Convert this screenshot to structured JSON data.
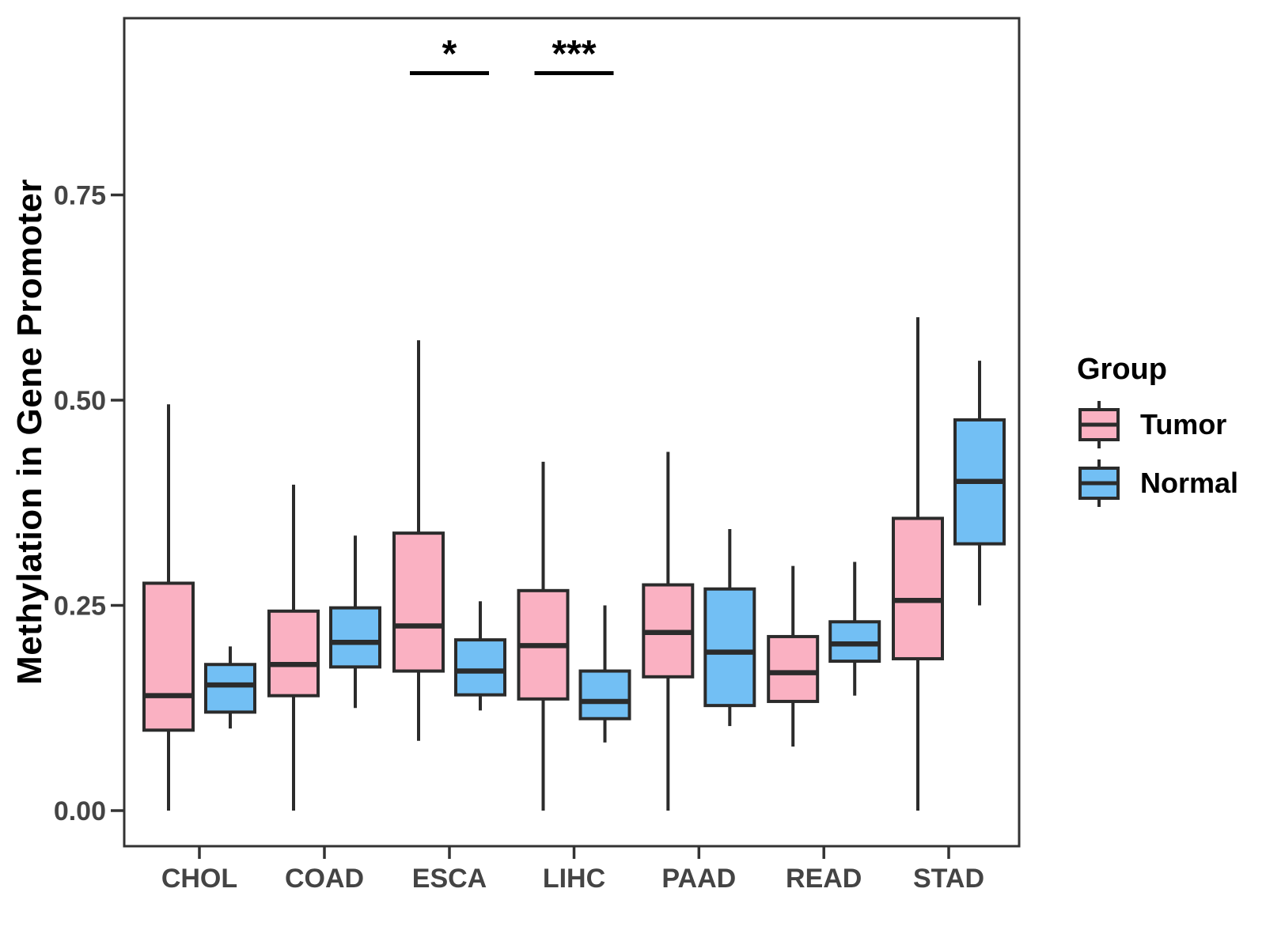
{
  "figure": {
    "background": "#FFFFFF"
  },
  "chart_data": {
    "type": "grouped_boxplot",
    "title": "",
    "xlabel": "",
    "ylabel": "Methylation in Gene Promoter",
    "categories": [
      "CHOL",
      "COAD",
      "ESCA",
      "LIHC",
      "PAAD",
      "READ",
      "STAD"
    ],
    "yticks": [
      0.0,
      0.25,
      0.5,
      0.75
    ],
    "ytick_labels": [
      "0.00",
      "0.25",
      "0.50",
      "0.75"
    ],
    "ylim": [
      -0.043,
      0.965
    ],
    "grid": "off",
    "legend": {
      "title": "Group",
      "position": "right"
    },
    "series": [
      {
        "name": "Tumor",
        "color": "#FAB1C2",
        "boxes_format": [
          "min",
          "q1",
          "median",
          "q3",
          "max"
        ],
        "values": [
          [
            0.0,
            0.098,
            0.14,
            0.277,
            0.495
          ],
          [
            0.0,
            0.14,
            0.178,
            0.243,
            0.397
          ],
          [
            0.085,
            0.17,
            0.225,
            0.338,
            0.573
          ],
          [
            0.0,
            0.136,
            0.201,
            0.268,
            0.425
          ],
          [
            0.0,
            0.163,
            0.217,
            0.275,
            0.437
          ],
          [
            0.078,
            0.133,
            0.168,
            0.212,
            0.298
          ],
          [
            0.0,
            0.185,
            0.256,
            0.356,
            0.601
          ]
        ]
      },
      {
        "name": "Normal",
        "color": "#72BFF4",
        "boxes_format": [
          "min",
          "q1",
          "median",
          "q3",
          "max"
        ],
        "values": [
          [
            0.1,
            0.12,
            0.153,
            0.178,
            0.2
          ],
          [
            0.125,
            0.175,
            0.205,
            0.247,
            0.335
          ],
          [
            0.122,
            0.141,
            0.17,
            0.208,
            0.255
          ],
          [
            0.083,
            0.112,
            0.133,
            0.17,
            0.25
          ],
          [
            0.103,
            0.128,
            0.193,
            0.27,
            0.343
          ],
          [
            0.14,
            0.182,
            0.203,
            0.23,
            0.303
          ],
          [
            0.25,
            0.325,
            0.401,
            0.476,
            0.548
          ]
        ]
      }
    ],
    "annotations": [
      {
        "category": "ESCA",
        "label": "*"
      },
      {
        "category": "LIHC",
        "label": "***"
      }
    ],
    "colors": {
      "frame": "#333333",
      "box_stroke": "#2B2B2B",
      "tick_label_text": "#444444",
      "annotation": "#000000"
    }
  }
}
